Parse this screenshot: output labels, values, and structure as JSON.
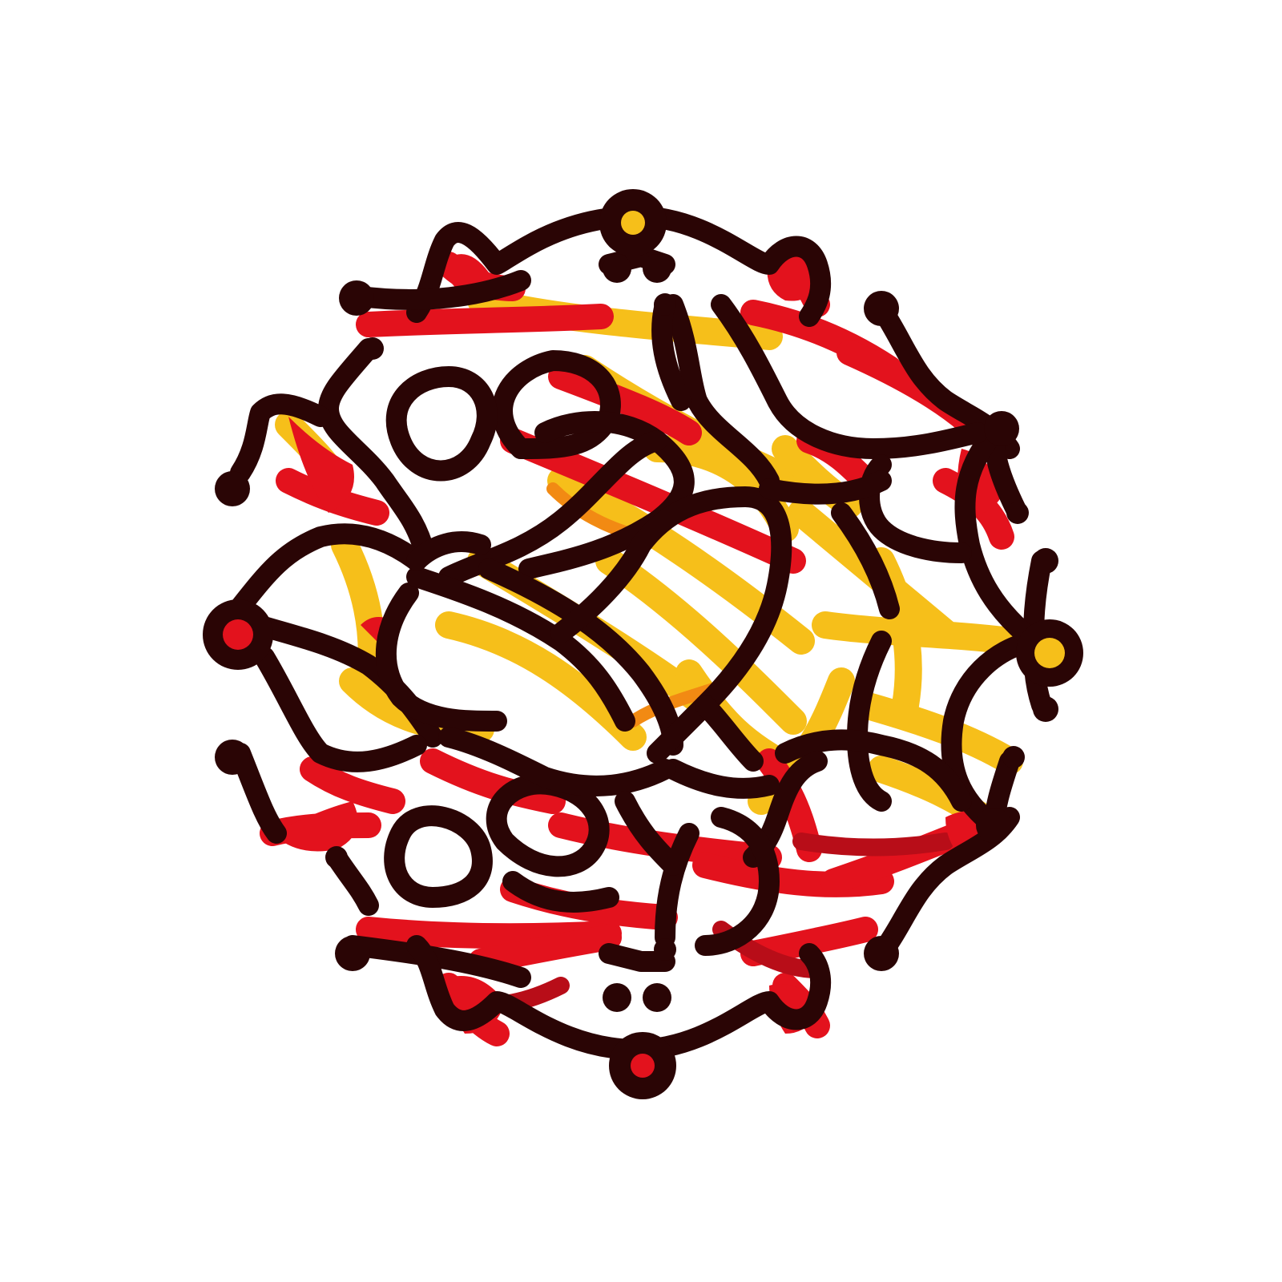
{
  "background_color": "#ffffff",
  "palette": {
    "outline": "#2a0505",
    "red": "#e3121d",
    "dark_red": "#b80d18",
    "yellow": "#f6bf1a",
    "light_yellow": "#ffd23a",
    "orange": "#f28a13"
  },
  "emblem": {
    "icon": "tangled-lattice-sphere-icon",
    "node_colors": {
      "top": "yellow",
      "left": "red",
      "right": "yellow",
      "bottom": "red"
    }
  }
}
